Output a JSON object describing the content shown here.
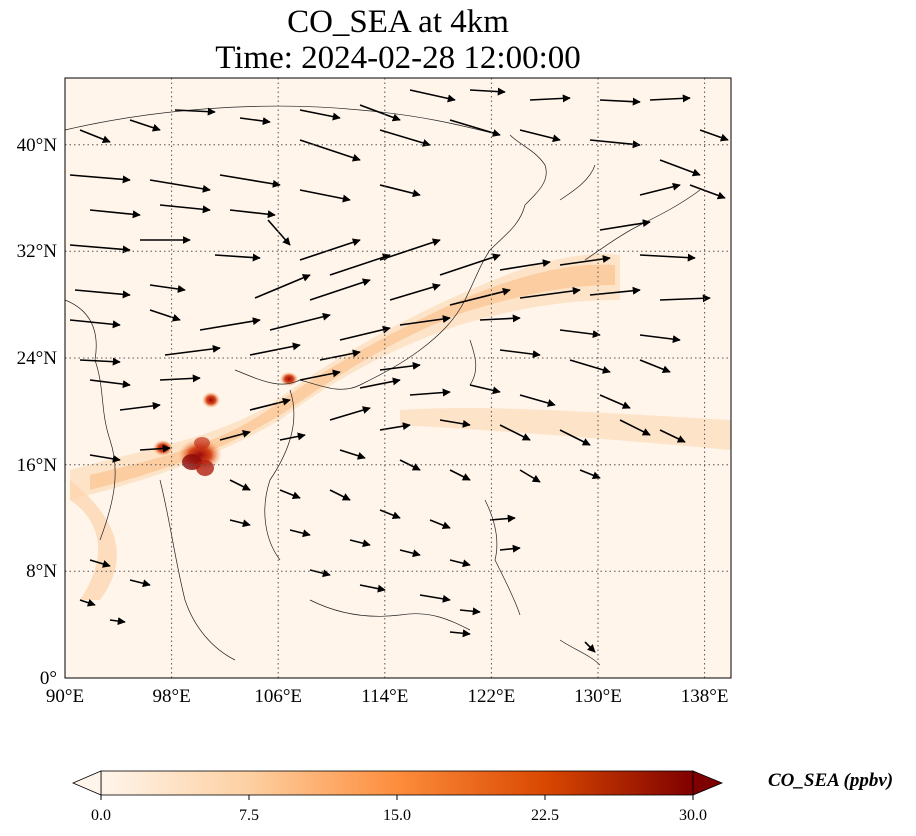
{
  "title_line1": "CO_SEA at 4km",
  "title_line2": "Time: 2024-02-28 12:00:00",
  "map": {
    "lon_range": [
      90,
      140
    ],
    "lat_range": [
      0,
      45
    ],
    "lon_ticks": [
      "90°E",
      "98°E",
      "106°E",
      "114°E",
      "122°E",
      "130°E",
      "138°E"
    ],
    "lon_tick_values": [
      90,
      98,
      106,
      114,
      122,
      130,
      138
    ],
    "lat_ticks": [
      "0°",
      "8°N",
      "16°N",
      "24°N",
      "32°N",
      "40°N"
    ],
    "lat_tick_values": [
      0,
      8,
      16,
      24,
      32,
      40
    ],
    "gridlines": "dotted"
  },
  "colorbar": {
    "label": "CO_SEA (ppbv)",
    "ticks": [
      "0.0",
      "7.5",
      "15.0",
      "22.5",
      "30.0"
    ],
    "tick_values": [
      0,
      7.5,
      15,
      22.5,
      30
    ],
    "range": [
      0,
      30
    ],
    "extend": "both",
    "colors": [
      "#fff5eb",
      "#fdd0a2",
      "#fd8d3c",
      "#d94801",
      "#7f0000"
    ]
  }
}
